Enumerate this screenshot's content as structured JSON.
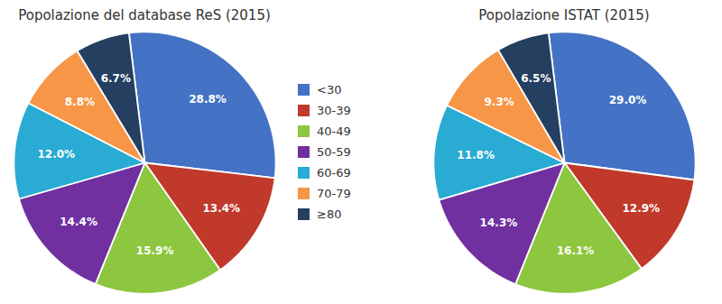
{
  "chart_data": [
    {
      "type": "pie",
      "title": "Popolazione del database ReS (2015)",
      "categories": [
        "<30",
        "30-39",
        "40-49",
        "50-59",
        "60-69",
        "70-79",
        "≥80"
      ],
      "values": [
        28.8,
        13.4,
        15.9,
        14.4,
        12.0,
        8.8,
        6.7
      ],
      "value_labels": [
        "28.8%",
        "13.4%",
        "15.9%",
        "14.4%",
        "12.0%",
        "8.8%",
        "6.7%"
      ],
      "colors": [
        "#4472C4",
        "#C0392B",
        "#8DC63F",
        "#7030A0",
        "#29ABD4",
        "#F79646",
        "#243F60"
      ],
      "data_labels": true
    },
    {
      "type": "pie",
      "title": "Popolazione ISTAT (2015)",
      "categories": [
        "<30",
        "30-39",
        "40-49",
        "50-59",
        "60-69",
        "70-79",
        "≥80"
      ],
      "values": [
        29.0,
        12.9,
        16.1,
        14.3,
        11.8,
        9.3,
        6.5
      ],
      "value_labels": [
        "29.0%",
        "12.9%",
        "16.1%",
        "14.3%",
        "11.8%",
        "9.3%",
        "6.5%"
      ],
      "colors": [
        "#4472C4",
        "#C0392B",
        "#8DC63F",
        "#7030A0",
        "#29ABD4",
        "#F79646",
        "#243F60"
      ],
      "data_labels": true
    }
  ]
}
